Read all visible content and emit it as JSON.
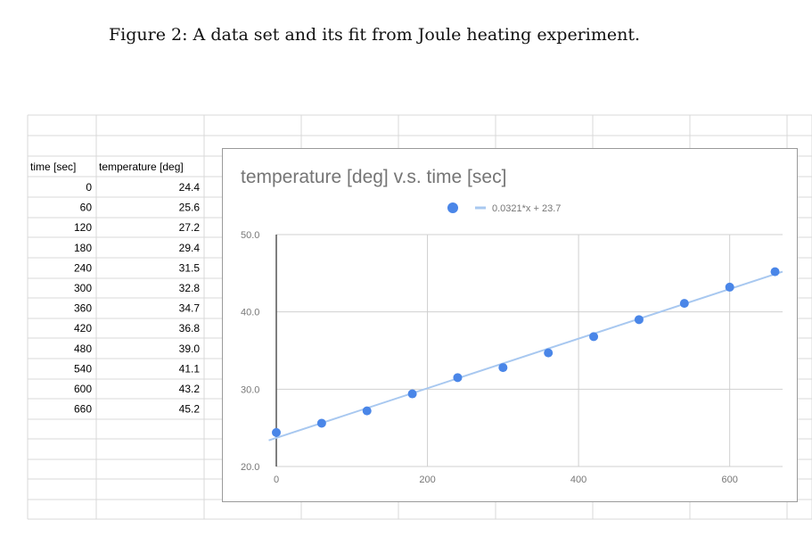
{
  "caption": "Figure 2: A data set and its fit from Joule heating experiment.",
  "table": {
    "headers": [
      "time [sec]",
      "temperature [deg]"
    ],
    "rows": [
      [
        "0",
        "24.4"
      ],
      [
        "60",
        "25.6"
      ],
      [
        "120",
        "27.2"
      ],
      [
        "180",
        "29.4"
      ],
      [
        "240",
        "31.5"
      ],
      [
        "300",
        "32.8"
      ],
      [
        "360",
        "34.7"
      ],
      [
        "420",
        "36.8"
      ],
      [
        "480",
        "39.0"
      ],
      [
        "540",
        "41.1"
      ],
      [
        "600",
        "43.2"
      ],
      [
        "660",
        "45.2"
      ]
    ]
  },
  "chart_data": {
    "type": "scatter",
    "title": "temperature [deg] v.s. time [sec]",
    "x": [
      0,
      60,
      120,
      180,
      240,
      300,
      360,
      420,
      480,
      540,
      600,
      660
    ],
    "series": [
      {
        "values": [
          24.4,
          25.6,
          27.2,
          29.4,
          31.5,
          32.8,
          34.7,
          36.8,
          39.0,
          41.1,
          43.2,
          45.2
        ],
        "color": "#4a86e8"
      }
    ],
    "trendline": {
      "label": "0.0321*x + 23.7",
      "slope": 0.0321,
      "intercept": 23.7,
      "color": "#a8c8f0"
    },
    "xlim": [
      0,
      670
    ],
    "ylim": [
      20,
      50
    ],
    "xticks": [
      "0",
      "200",
      "400",
      "600"
    ],
    "xtick_values": [
      0,
      200,
      400,
      600
    ],
    "yticks": [
      "20.0",
      "30.0",
      "40.0",
      "50.0"
    ],
    "ytick_values": [
      20,
      30,
      40,
      50
    ],
    "grid": true,
    "legend_position": "top-center"
  }
}
